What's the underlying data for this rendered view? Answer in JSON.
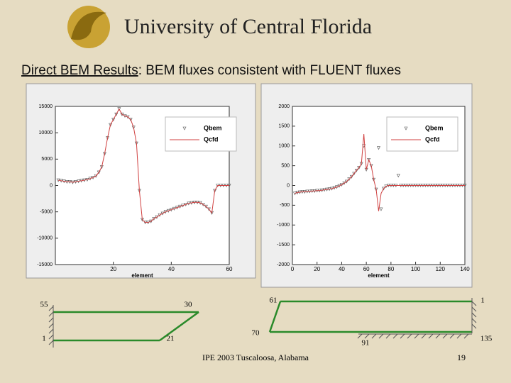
{
  "header": {
    "title": "University of Central Florida"
  },
  "subtitle": {
    "underlined": "Direct BEM Results",
    "rest": ": BEM fluxes consistent with FLUENT fluxes"
  },
  "chart_data": [
    {
      "type": "line",
      "xlabel": "element",
      "x": [
        1,
        2,
        3,
        4,
        5,
        6,
        7,
        8,
        9,
        10,
        11,
        12,
        13,
        14,
        15,
        16,
        17,
        18,
        19,
        20,
        21,
        22,
        23,
        24,
        25,
        26,
        27,
        28,
        29,
        30,
        31,
        32,
        33,
        34,
        35,
        36,
        37,
        38,
        39,
        40,
        41,
        42,
        43,
        44,
        45,
        46,
        47,
        48,
        49,
        50,
        51,
        52,
        53,
        54,
        55,
        56,
        57,
        58,
        59,
        60
      ],
      "series": [
        {
          "name": "Qbem",
          "color": "#555555",
          "style": "markers",
          "values": [
            1000,
            900,
            800,
            700,
            700,
            600,
            700,
            800,
            900,
            1000,
            1100,
            1300,
            1500,
            1800,
            2500,
            3500,
            6000,
            9000,
            11500,
            12500,
            13500,
            14500,
            13500,
            13200,
            13000,
            12500,
            11000,
            8000,
            -1000,
            -6500,
            -7000,
            -7000,
            -6800,
            -6300,
            -6000,
            -5600,
            -5300,
            -5000,
            -4800,
            -4600,
            -4400,
            -4200,
            -4000,
            -3800,
            -3600,
            -3400,
            -3300,
            -3200,
            -3200,
            -3300,
            -3600,
            -4000,
            -4500,
            -5200,
            -1000,
            0,
            0,
            0,
            0,
            0
          ]
        },
        {
          "name": "Qcfd",
          "color": "#d04040",
          "style": "line",
          "values": [
            1000,
            900,
            800,
            700,
            700,
            600,
            700,
            800,
            900,
            1000,
            1100,
            1300,
            1500,
            1800,
            2500,
            3500,
            6000,
            9000,
            11500,
            12500,
            13500,
            14500,
            13500,
            13200,
            13000,
            12500,
            11000,
            8000,
            -1000,
            -6500,
            -7000,
            -7000,
            -6800,
            -6300,
            -6000,
            -5600,
            -5300,
            -5000,
            -4800,
            -4600,
            -4400,
            -4200,
            -4000,
            -3800,
            -3600,
            -3400,
            -3300,
            -3200,
            -3200,
            -3300,
            -3600,
            -4000,
            -4500,
            -5200,
            -1000,
            0,
            0,
            0,
            0,
            0
          ]
        }
      ],
      "xlim": [
        0,
        60
      ],
      "xticks": [
        20,
        40,
        60
      ],
      "ylim": [
        -15000,
        15000
      ],
      "yticks": [
        -15000,
        -10000,
        -5000,
        0,
        5000,
        10000,
        15000
      ]
    },
    {
      "type": "line",
      "xlabel": "element",
      "x": [
        2,
        4,
        6,
        8,
        10,
        12,
        14,
        16,
        18,
        20,
        22,
        24,
        26,
        28,
        30,
        32,
        34,
        36,
        38,
        40,
        42,
        44,
        46,
        48,
        50,
        52,
        54,
        56,
        58,
        60,
        62,
        64,
        66,
        68,
        70,
        72,
        74,
        76,
        78,
        80,
        82,
        84,
        86,
        88,
        90,
        92,
        94,
        96,
        98,
        100,
        102,
        104,
        106,
        108,
        110,
        112,
        114,
        116,
        118,
        120,
        122,
        124,
        126,
        128,
        130,
        132,
        134,
        136,
        138,
        140
      ],
      "series": [
        {
          "name": "Qbem",
          "color": "#555555",
          "style": "markers",
          "values": [
            -200,
            -180,
            -170,
            -160,
            -160,
            -150,
            -150,
            -140,
            -140,
            -130,
            -130,
            -120,
            -110,
            -100,
            -90,
            -80,
            -60,
            -40,
            -10,
            20,
            60,
            100,
            160,
            220,
            300,
            380,
            450,
            550,
            1000,
            400,
            650,
            500,
            150,
            -100,
            950,
            -600,
            -80,
            -20,
            0,
            0,
            0,
            0,
            250,
            0,
            0,
            0,
            0,
            0,
            0,
            0,
            0,
            0,
            0,
            0,
            0,
            0,
            0,
            0,
            0,
            0,
            0,
            0,
            0,
            0,
            0,
            0,
            0,
            0,
            0,
            0
          ]
        },
        {
          "name": "Qcfd",
          "color": "#d04040",
          "style": "line",
          "values": [
            -200,
            -180,
            -170,
            -160,
            -160,
            -150,
            -150,
            -140,
            -140,
            -130,
            -130,
            -120,
            -110,
            -100,
            -90,
            -80,
            -60,
            -40,
            -10,
            20,
            60,
            100,
            160,
            220,
            300,
            380,
            450,
            550,
            1300,
            400,
            650,
            500,
            150,
            -100,
            -650,
            -200,
            -80,
            -20,
            0,
            0,
            0,
            0,
            0,
            0,
            0,
            0,
            0,
            0,
            0,
            0,
            0,
            0,
            0,
            0,
            0,
            0,
            0,
            0,
            0,
            0,
            0,
            0,
            0,
            0,
            0,
            0,
            0,
            0,
            0,
            0
          ]
        }
      ],
      "xlim": [
        0,
        140
      ],
      "xticks": [
        0,
        20,
        40,
        60,
        80,
        100,
        120,
        140
      ],
      "ylim": [
        -2000,
        2000
      ],
      "yticks": [
        -2000,
        -1500,
        -1000,
        -500,
        0,
        500,
        1000,
        1500,
        2000
      ]
    }
  ],
  "diagram": {
    "labels": [
      "55",
      "30",
      "1",
      "21",
      "61",
      "1",
      "70",
      "91",
      "135"
    ]
  },
  "footer": {
    "text": "IPE 2003 Tuscaloosa, Alabama",
    "page": "19"
  }
}
